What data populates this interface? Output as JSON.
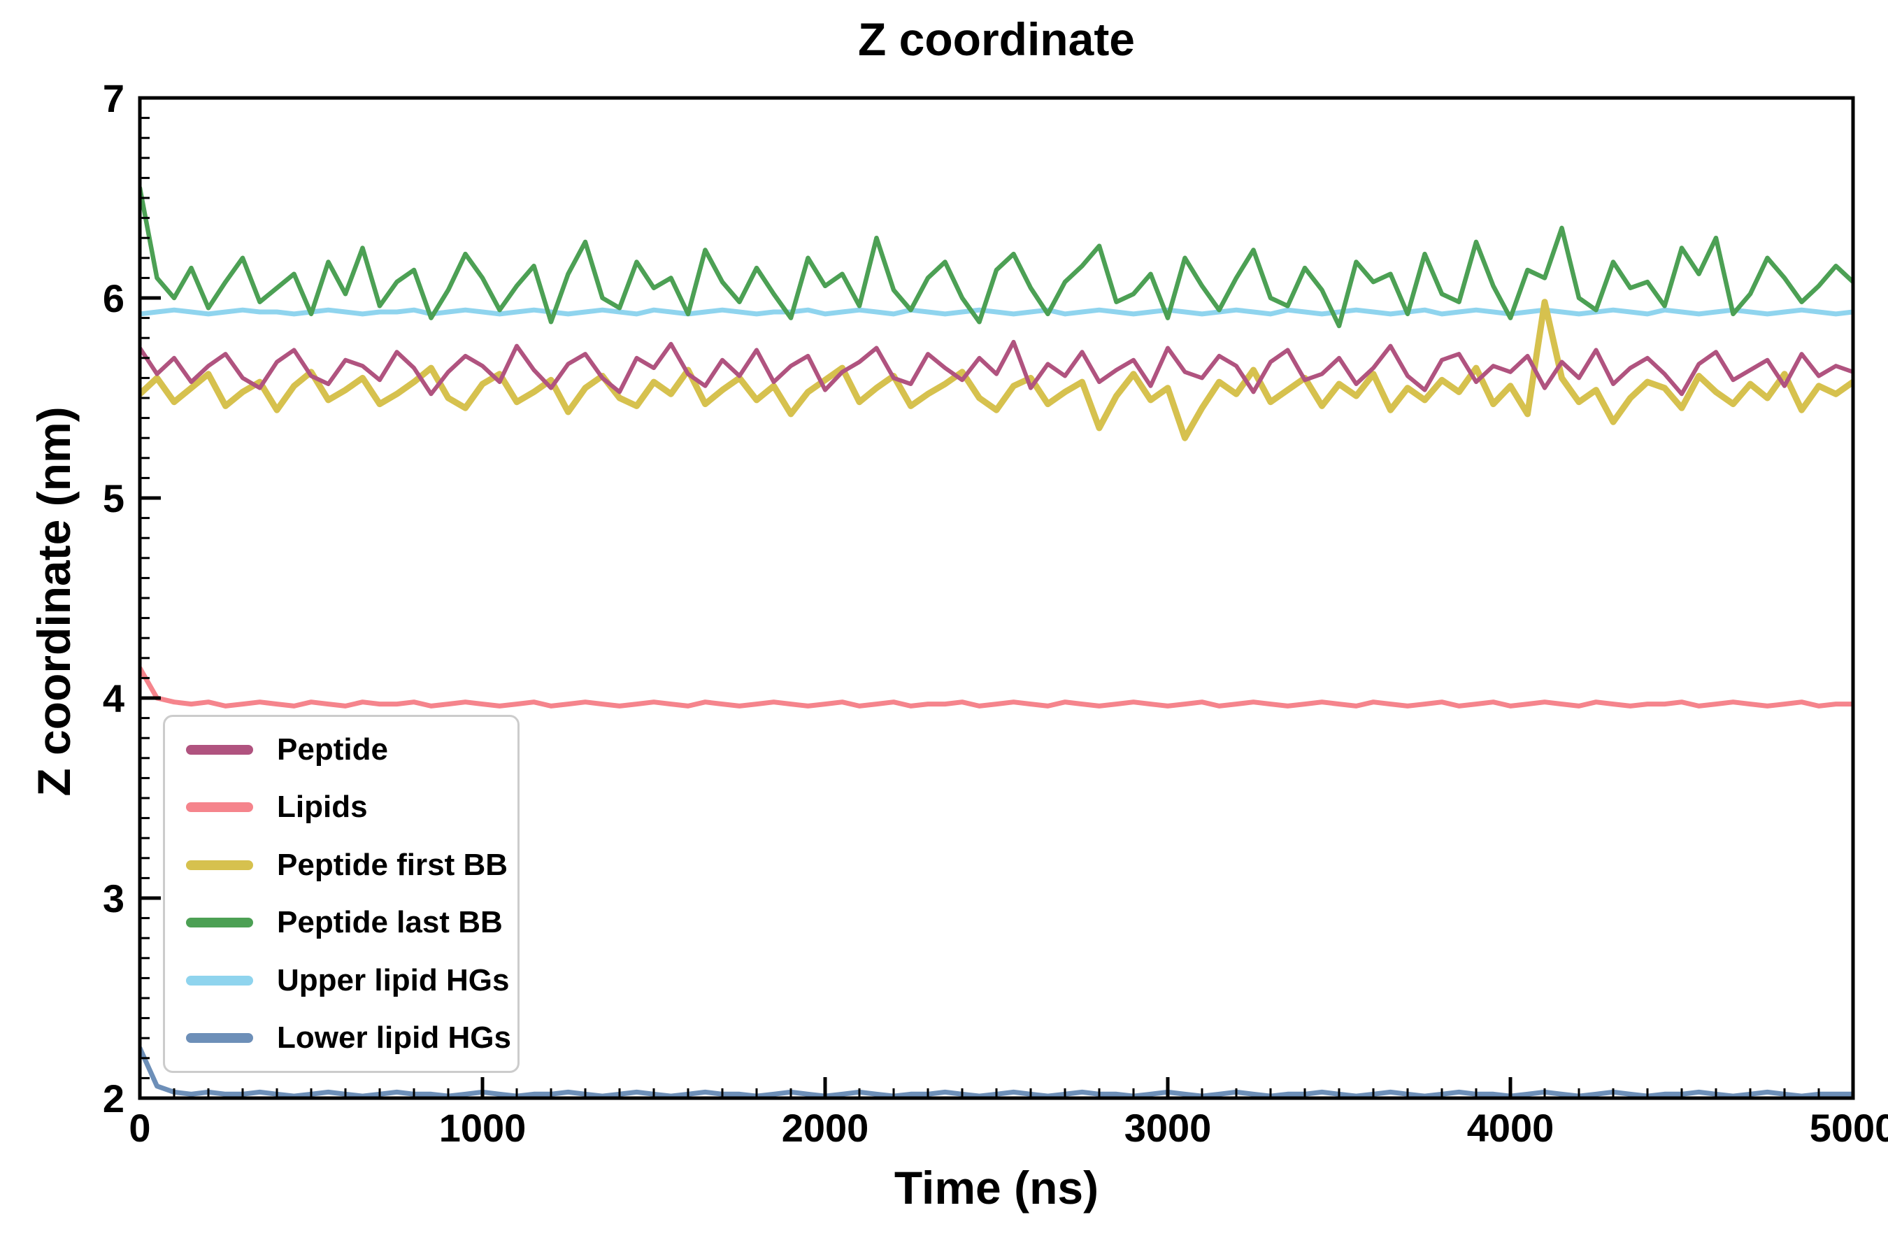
{
  "figure": {
    "title": "Z coordinate",
    "xlabel": "Time (ns)",
    "ylabel": "Z coordinate (nm)"
  },
  "chart_data": {
    "type": "line",
    "title": "Z coordinate",
    "xlabel": "Time (ns)",
    "ylabel": "Z coordinate (nm)",
    "xlim": [
      0,
      5000
    ],
    "ylim": [
      2,
      7
    ],
    "x_ticks": [
      0,
      1000,
      2000,
      3000,
      4000,
      5000
    ],
    "y_ticks": [
      2,
      3,
      4,
      5,
      6,
      7
    ],
    "x_minor_step": 100,
    "y_minor_step": 0.1,
    "grid": false,
    "legend_position": "lower left",
    "n_points": 101,
    "x_start": 0,
    "x_step": 50,
    "series": [
      {
        "name": "Lower lipid HGs",
        "label": "Lower lipid HGs",
        "color": "#6d8fb8",
        "lw": 7,
        "values": [
          2.25,
          2.06,
          2.03,
          2.02,
          2.03,
          2.02,
          2.02,
          2.03,
          2.02,
          2.01,
          2.02,
          2.03,
          2.02,
          2.01,
          2.02,
          2.03,
          2.02,
          2.02,
          2.01,
          2.02,
          2.03,
          2.02,
          2.01,
          2.02,
          2.02,
          2.03,
          2.02,
          2.01,
          2.02,
          2.03,
          2.02,
          2.01,
          2.02,
          2.03,
          2.02,
          2.02,
          2.01,
          2.02,
          2.03,
          2.02,
          2.01,
          2.02,
          2.03,
          2.02,
          2.01,
          2.02,
          2.02,
          2.03,
          2.02,
          2.01,
          2.02,
          2.03,
          2.02,
          2.01,
          2.02,
          2.03,
          2.02,
          2.02,
          2.01,
          2.02,
          2.03,
          2.02,
          2.01,
          2.02,
          2.03,
          2.02,
          2.01,
          2.02,
          2.02,
          2.03,
          2.02,
          2.01,
          2.02,
          2.03,
          2.02,
          2.01,
          2.02,
          2.03,
          2.02,
          2.02,
          2.01,
          2.02,
          2.03,
          2.02,
          2.01,
          2.02,
          2.03,
          2.02,
          2.01,
          2.02,
          2.02,
          2.03,
          2.02,
          2.01,
          2.02,
          2.03,
          2.02,
          2.01,
          2.02,
          2.02,
          2.02
        ]
      },
      {
        "name": "Lipids",
        "label": "Lipids",
        "color": "#f5848c",
        "lw": 7,
        "values": [
          4.15,
          4.0,
          3.98,
          3.97,
          3.98,
          3.96,
          3.97,
          3.98,
          3.97,
          3.96,
          3.98,
          3.97,
          3.96,
          3.98,
          3.97,
          3.97,
          3.98,
          3.96,
          3.97,
          3.98,
          3.97,
          3.96,
          3.97,
          3.98,
          3.96,
          3.97,
          3.98,
          3.97,
          3.96,
          3.97,
          3.98,
          3.97,
          3.96,
          3.98,
          3.97,
          3.96,
          3.97,
          3.98,
          3.97,
          3.96,
          3.97,
          3.98,
          3.96,
          3.97,
          3.98,
          3.96,
          3.97,
          3.97,
          3.98,
          3.96,
          3.97,
          3.98,
          3.97,
          3.96,
          3.98,
          3.97,
          3.96,
          3.97,
          3.98,
          3.97,
          3.96,
          3.97,
          3.98,
          3.96,
          3.97,
          3.98,
          3.97,
          3.96,
          3.97,
          3.98,
          3.97,
          3.96,
          3.98,
          3.97,
          3.96,
          3.97,
          3.98,
          3.96,
          3.97,
          3.98,
          3.96,
          3.97,
          3.98,
          3.97,
          3.96,
          3.98,
          3.97,
          3.96,
          3.97,
          3.97,
          3.98,
          3.96,
          3.97,
          3.98,
          3.97,
          3.96,
          3.97,
          3.98,
          3.96,
          3.97,
          3.97
        ]
      },
      {
        "name": "Upper lipid HGs",
        "label": "Upper lipid HGs",
        "color": "#8fd4ee",
        "lw": 7,
        "values": [
          5.92,
          5.93,
          5.94,
          5.93,
          5.92,
          5.93,
          5.94,
          5.93,
          5.93,
          5.92,
          5.93,
          5.94,
          5.93,
          5.92,
          5.93,
          5.93,
          5.94,
          5.92,
          5.93,
          5.94,
          5.93,
          5.92,
          5.93,
          5.94,
          5.93,
          5.92,
          5.93,
          5.94,
          5.93,
          5.92,
          5.94,
          5.93,
          5.92,
          5.93,
          5.94,
          5.93,
          5.92,
          5.93,
          5.93,
          5.94,
          5.92,
          5.93,
          5.94,
          5.93,
          5.92,
          5.94,
          5.93,
          5.92,
          5.93,
          5.94,
          5.93,
          5.92,
          5.93,
          5.94,
          5.92,
          5.93,
          5.94,
          5.93,
          5.92,
          5.93,
          5.94,
          5.93,
          5.92,
          5.93,
          5.94,
          5.93,
          5.92,
          5.94,
          5.93,
          5.92,
          5.93,
          5.94,
          5.93,
          5.92,
          5.93,
          5.94,
          5.92,
          5.93,
          5.94,
          5.93,
          5.92,
          5.93,
          5.94,
          5.93,
          5.92,
          5.93,
          5.94,
          5.93,
          5.92,
          5.94,
          5.93,
          5.92,
          5.93,
          5.94,
          5.93,
          5.92,
          5.93,
          5.94,
          5.93,
          5.92,
          5.93
        ]
      },
      {
        "name": "Peptide first BB",
        "label": "Peptide first BB",
        "color": "#d6c14e",
        "lw": 9,
        "values": [
          5.52,
          5.6,
          5.48,
          5.55,
          5.62,
          5.46,
          5.53,
          5.58,
          5.44,
          5.56,
          5.63,
          5.49,
          5.54,
          5.6,
          5.47,
          5.52,
          5.58,
          5.65,
          5.5,
          5.45,
          5.57,
          5.62,
          5.48,
          5.53,
          5.59,
          5.43,
          5.55,
          5.61,
          5.5,
          5.46,
          5.58,
          5.52,
          5.64,
          5.47,
          5.54,
          5.6,
          5.49,
          5.56,
          5.42,
          5.53,
          5.59,
          5.65,
          5.48,
          5.55,
          5.61,
          5.46,
          5.52,
          5.57,
          5.63,
          5.5,
          5.44,
          5.56,
          5.6,
          5.47,
          5.53,
          5.58,
          5.35,
          5.51,
          5.62,
          5.49,
          5.55,
          5.3,
          5.45,
          5.58,
          5.52,
          5.64,
          5.48,
          5.54,
          5.6,
          5.46,
          5.57,
          5.51,
          5.62,
          5.44,
          5.55,
          5.49,
          5.59,
          5.53,
          5.65,
          5.47,
          5.56,
          5.42,
          5.98,
          5.6,
          5.48,
          5.54,
          5.38,
          5.5,
          5.58,
          5.55,
          5.45,
          5.61,
          5.53,
          5.47,
          5.57,
          5.5,
          5.62,
          5.44,
          5.56,
          5.52,
          5.58
        ]
      },
      {
        "name": "Peptide",
        "label": "Peptide",
        "color": "#b0537f",
        "lw": 6,
        "values": [
          5.75,
          5.62,
          5.7,
          5.58,
          5.66,
          5.72,
          5.6,
          5.55,
          5.68,
          5.74,
          5.61,
          5.57,
          5.69,
          5.66,
          5.59,
          5.73,
          5.65,
          5.52,
          5.63,
          5.71,
          5.66,
          5.58,
          5.76,
          5.64,
          5.55,
          5.67,
          5.72,
          5.6,
          5.53,
          5.7,
          5.65,
          5.77,
          5.62,
          5.56,
          5.69,
          5.61,
          5.74,
          5.58,
          5.66,
          5.71,
          5.54,
          5.63,
          5.68,
          5.75,
          5.6,
          5.57,
          5.72,
          5.65,
          5.59,
          5.7,
          5.62,
          5.78,
          5.55,
          5.67,
          5.61,
          5.73,
          5.58,
          5.64,
          5.69,
          5.56,
          5.75,
          5.63,
          5.6,
          5.71,
          5.66,
          5.53,
          5.68,
          5.74,
          5.59,
          5.62,
          5.7,
          5.57,
          5.65,
          5.76,
          5.61,
          5.54,
          5.69,
          5.72,
          5.58,
          5.66,
          5.63,
          5.71,
          5.55,
          5.68,
          5.6,
          5.74,
          5.57,
          5.65,
          5.7,
          5.62,
          5.52,
          5.67,
          5.73,
          5.59,
          5.64,
          5.69,
          5.56,
          5.72,
          5.61,
          5.66,
          5.63
        ]
      },
      {
        "name": "Peptide last BB",
        "label": "Peptide last BB",
        "color": "#4ca054",
        "lw": 6.5,
        "values": [
          6.55,
          6.1,
          6.0,
          6.15,
          5.95,
          6.08,
          6.2,
          5.98,
          6.05,
          6.12,
          5.92,
          6.18,
          6.02,
          6.25,
          5.96,
          6.08,
          6.14,
          5.9,
          6.04,
          6.22,
          6.1,
          5.94,
          6.06,
          6.16,
          5.88,
          6.12,
          6.28,
          6.0,
          5.95,
          6.18,
          6.05,
          6.1,
          5.92,
          6.24,
          6.08,
          5.98,
          6.15,
          6.02,
          5.9,
          6.2,
          6.06,
          6.12,
          5.96,
          6.3,
          6.04,
          5.94,
          6.1,
          6.18,
          6.0,
          5.88,
          6.14,
          6.22,
          6.05,
          5.92,
          6.08,
          6.16,
          6.26,
          5.98,
          6.02,
          6.12,
          5.9,
          6.2,
          6.06,
          5.94,
          6.1,
          6.24,
          6.0,
          5.96,
          6.15,
          6.04,
          5.86,
          6.18,
          6.08,
          6.12,
          5.92,
          6.22,
          6.02,
          5.98,
          6.28,
          6.06,
          5.9,
          6.14,
          6.1,
          6.35,
          6.0,
          5.94,
          6.18,
          6.05,
          6.08,
          5.96,
          6.25,
          6.12,
          6.3,
          5.92,
          6.02,
          6.2,
          6.1,
          5.98,
          6.06,
          6.16,
          6.08
        ]
      }
    ],
    "legend_order": [
      "Peptide",
      "Lipids",
      "Peptide first BB",
      "Peptide last BB",
      "Upper lipid HGs",
      "Lower lipid HGs"
    ]
  }
}
